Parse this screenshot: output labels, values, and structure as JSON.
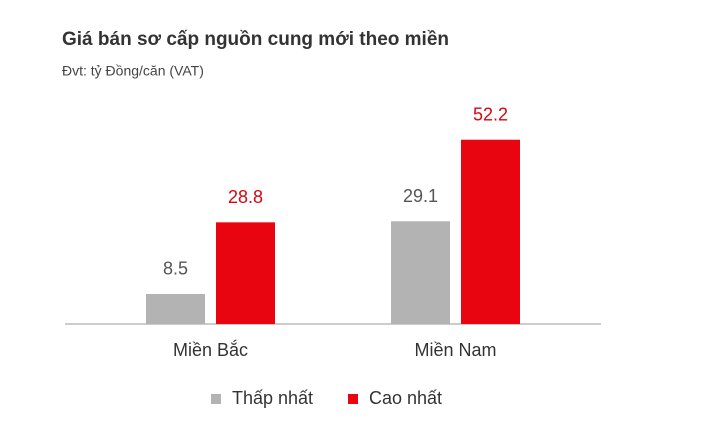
{
  "chart_data": {
    "type": "bar",
    "title": "Giá bán sơ cấp nguồn cung mới theo miền",
    "subtitle": "Đvt: tỷ Đồng/căn (VAT)",
    "categories": [
      "Miền Bắc",
      "Miền Nam"
    ],
    "series": [
      {
        "name": "Thấp nhất",
        "color": "#b3b3b3",
        "label_color": "#555555",
        "values": [
          8.5,
          29.1
        ]
      },
      {
        "name": "Cao nhất",
        "color": "#e8050f",
        "label_color": "#d8050e",
        "values": [
          28.8,
          52.2
        ]
      }
    ],
    "legend": "bottom"
  }
}
